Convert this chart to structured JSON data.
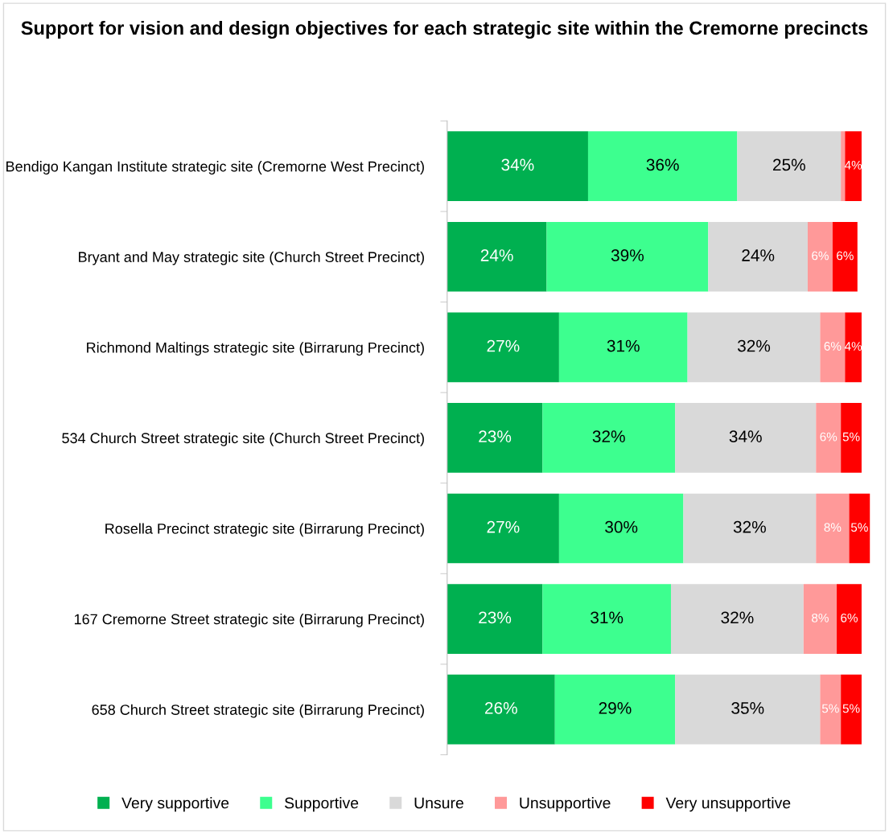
{
  "chart_data": {
    "type": "bar",
    "orientation": "horizontal",
    "stacked": true,
    "title": "Support for vision and design objectives for each strategic site within the Cremorne precincts",
    "categories": [
      "Bendigo Kangan Institute strategic site (Cremorne West Precinct)",
      "Bryant and May strategic site (Church Street Precinct)",
      "Richmond Maltings strategic site (Birrarung Precinct)",
      "534 Church Street strategic site (Church Street Precinct)",
      "Rosella Precinct strategic site (Birrarung Precinct)",
      "167 Cremorne Street strategic site (Birrarung Precinct)",
      "658 Church Street strategic site (Birrarung Precinct)"
    ],
    "series": [
      {
        "name": "Very supportive",
        "color": "#00b050",
        "values": [
          34,
          24,
          27,
          23,
          27,
          23,
          26
        ],
        "value_labels": [
          "34%",
          "24%",
          "27%",
          "23%",
          "27%",
          "23%",
          "26%"
        ]
      },
      {
        "name": "Supportive",
        "color": "#3dff8f",
        "values": [
          36,
          39,
          31,
          32,
          30,
          31,
          29
        ],
        "value_labels": [
          "36%",
          "39%",
          "31%",
          "32%",
          "30%",
          "31%",
          "29%"
        ]
      },
      {
        "name": "Unsure",
        "color": "#d9d9d9",
        "values": [
          25,
          24,
          32,
          34,
          32,
          32,
          35
        ],
        "value_labels": [
          "25%",
          "24%",
          "32%",
          "34%",
          "32%",
          "32%",
          "35%"
        ]
      },
      {
        "name": "Unsupportive",
        "color": "#ff9999",
        "values": [
          1,
          6,
          6,
          6,
          8,
          8,
          5
        ],
        "value_labels": [
          null,
          "6%",
          "6%",
          "6%",
          "8%",
          "8%",
          "5%"
        ]
      },
      {
        "name": "Very unsupportive",
        "color": "#ff0000",
        "values": [
          4,
          6,
          4,
          5,
          5,
          6,
          5
        ],
        "value_labels": [
          "4%",
          "6%",
          "4%",
          "5%",
          "5%",
          "6%",
          "5%"
        ]
      }
    ],
    "legend": "bottom",
    "tick_labels": "y",
    "grid": false
  }
}
